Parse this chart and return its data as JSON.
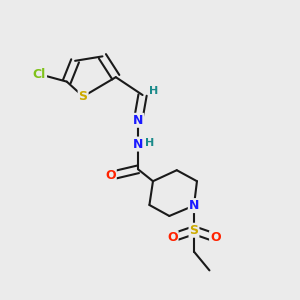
{
  "bg_color": "#ebebeb",
  "bond_color": "#1a1a1a",
  "atom_colors": {
    "Cl": "#7fc21a",
    "S_thio": "#ccaa00",
    "N": "#1a1aff",
    "O": "#ff2200",
    "S_sulf": "#ccaa00",
    "H": "#1a8a8a",
    "C": "#1a1a1a"
  },
  "font_size": 9,
  "bond_width": 1.5
}
